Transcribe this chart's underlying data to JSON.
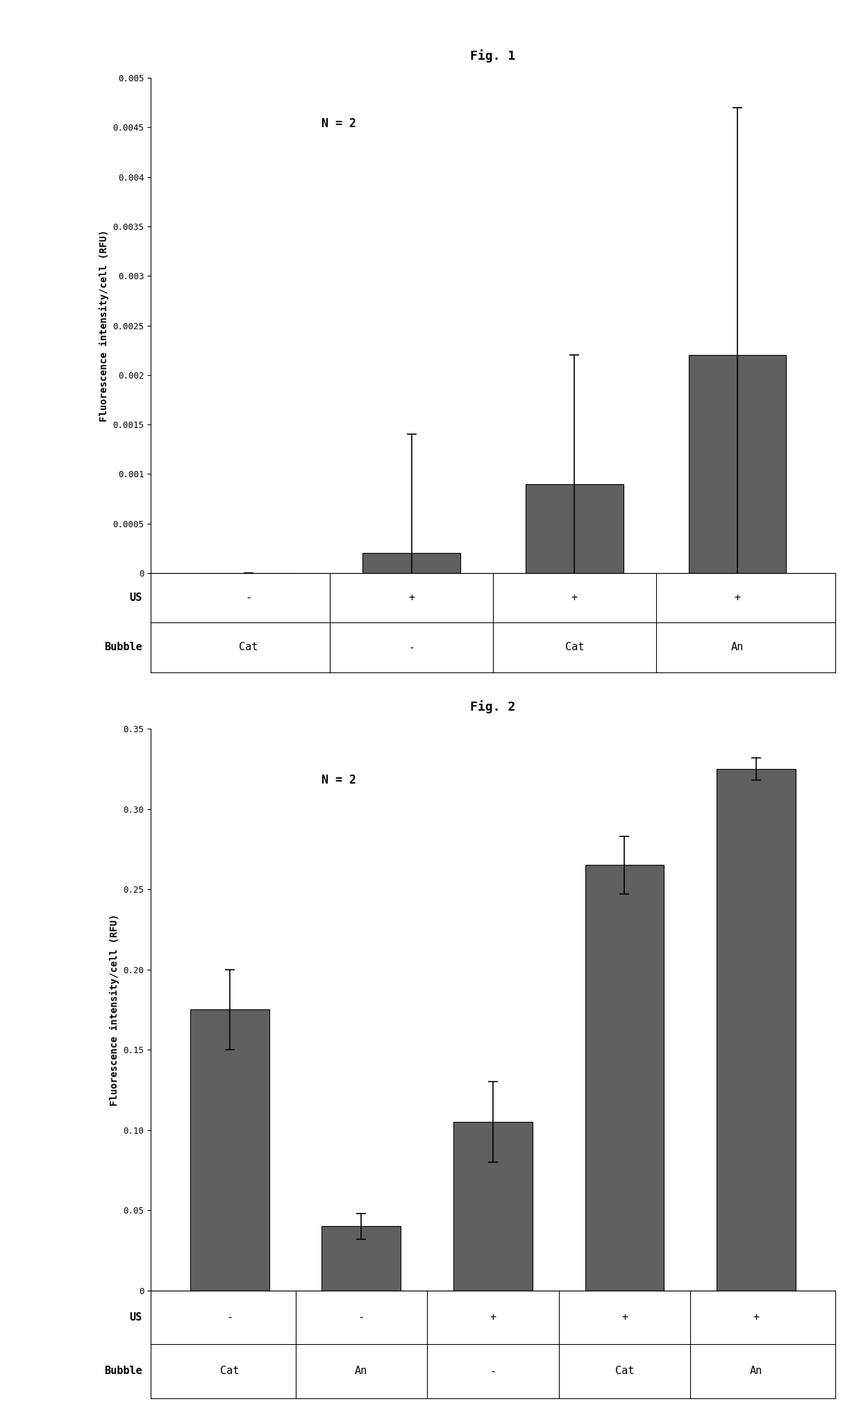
{
  "fig1": {
    "title": "Fig. 1",
    "annotation": "N = 2",
    "values": [
      0.0,
      0.0002,
      0.0009,
      0.0022
    ],
    "errors": [
      0.0,
      0.0012,
      0.0013,
      0.0025
    ],
    "us_labels": [
      "-",
      "+",
      "+",
      "+"
    ],
    "bubble_labels": [
      "Cat",
      "-",
      "Cat",
      "An"
    ],
    "ylabel": "Fluorescence intensity/cell (RFU)",
    "ylim": [
      0,
      0.005
    ],
    "yticks": [
      0,
      0.0005,
      0.001,
      0.0015,
      0.002,
      0.0025,
      0.003,
      0.0035,
      0.004,
      0.0045,
      0.005
    ],
    "ytick_labels": [
      "0",
      "0.0005",
      "0.001",
      "0.0015",
      "0.002",
      "0.0025",
      "0.003",
      "0.0035",
      "0.004",
      "0.0045",
      "0.005"
    ],
    "bar_color": "#606060",
    "bar_width": 0.6
  },
  "fig2": {
    "title": "Fig. 2",
    "annotation": "N = 2",
    "values": [
      0.175,
      0.04,
      0.105,
      0.265,
      0.325
    ],
    "errors": [
      0.025,
      0.008,
      0.025,
      0.018,
      0.007
    ],
    "us_labels": [
      "-",
      "-",
      "+",
      "+",
      "+"
    ],
    "bubble_labels": [
      "Cat",
      "An",
      "-",
      "Cat",
      "An"
    ],
    "ylabel": "Fluorescence intensity/cell (RFU)",
    "ylim": [
      0,
      0.35
    ],
    "yticks": [
      0,
      0.05,
      0.1,
      0.15,
      0.2,
      0.25,
      0.3,
      0.35
    ],
    "ytick_labels": [
      "0",
      "0.05",
      "0.10",
      "0.15",
      "0.20",
      "0.25",
      "0.30",
      "0.35"
    ],
    "bar_color": "#606060",
    "bar_width": 0.6
  },
  "figure_bg": "#ffffff",
  "title_fontsize": 13,
  "label_fontsize": 10,
  "tick_fontsize": 9,
  "annotation_fontsize": 12,
  "row_label_fontsize": 11,
  "xlabel_row1": "US",
  "xlabel_row2": "Bubble"
}
